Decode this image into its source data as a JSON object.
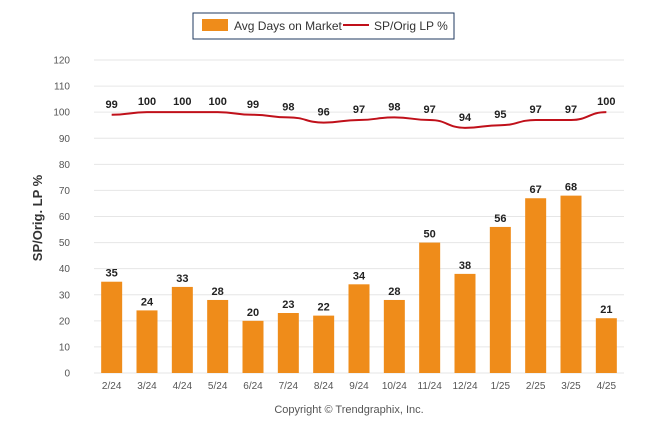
{
  "legend": {
    "bar_label": "Avg Days on Market",
    "line_label": "SP/Orig LP %"
  },
  "copyright": "Copyright © Trendgraphix, Inc.",
  "colors": {
    "bar": "#ef8c1a",
    "line": "#c0101a"
  },
  "chart_data": {
    "type": "bar",
    "categories": [
      "2/24",
      "3/24",
      "4/24",
      "5/24",
      "6/24",
      "7/24",
      "8/24",
      "9/24",
      "10/24",
      "11/24",
      "12/24",
      "1/25",
      "2/25",
      "3/25",
      "4/25"
    ],
    "series": [
      {
        "name": "Avg Days on Market",
        "type": "bar",
        "values": [
          35,
          24,
          33,
          28,
          20,
          23,
          22,
          34,
          28,
          50,
          38,
          56,
          67,
          68,
          21
        ]
      },
      {
        "name": "SP/Orig LP %",
        "type": "line",
        "values": [
          99,
          100,
          100,
          100,
          99,
          98,
          96,
          97,
          98,
          97,
          94,
          95,
          97,
          97,
          100
        ]
      }
    ],
    "ylabel": "SP/Orig. LP %",
    "xlabel": "",
    "ylim": [
      0,
      120
    ],
    "yticks": [
      0,
      10,
      20,
      30,
      40,
      50,
      60,
      70,
      80,
      90,
      100,
      110,
      120
    ],
    "grid": true,
    "legend_position": "top-center"
  }
}
